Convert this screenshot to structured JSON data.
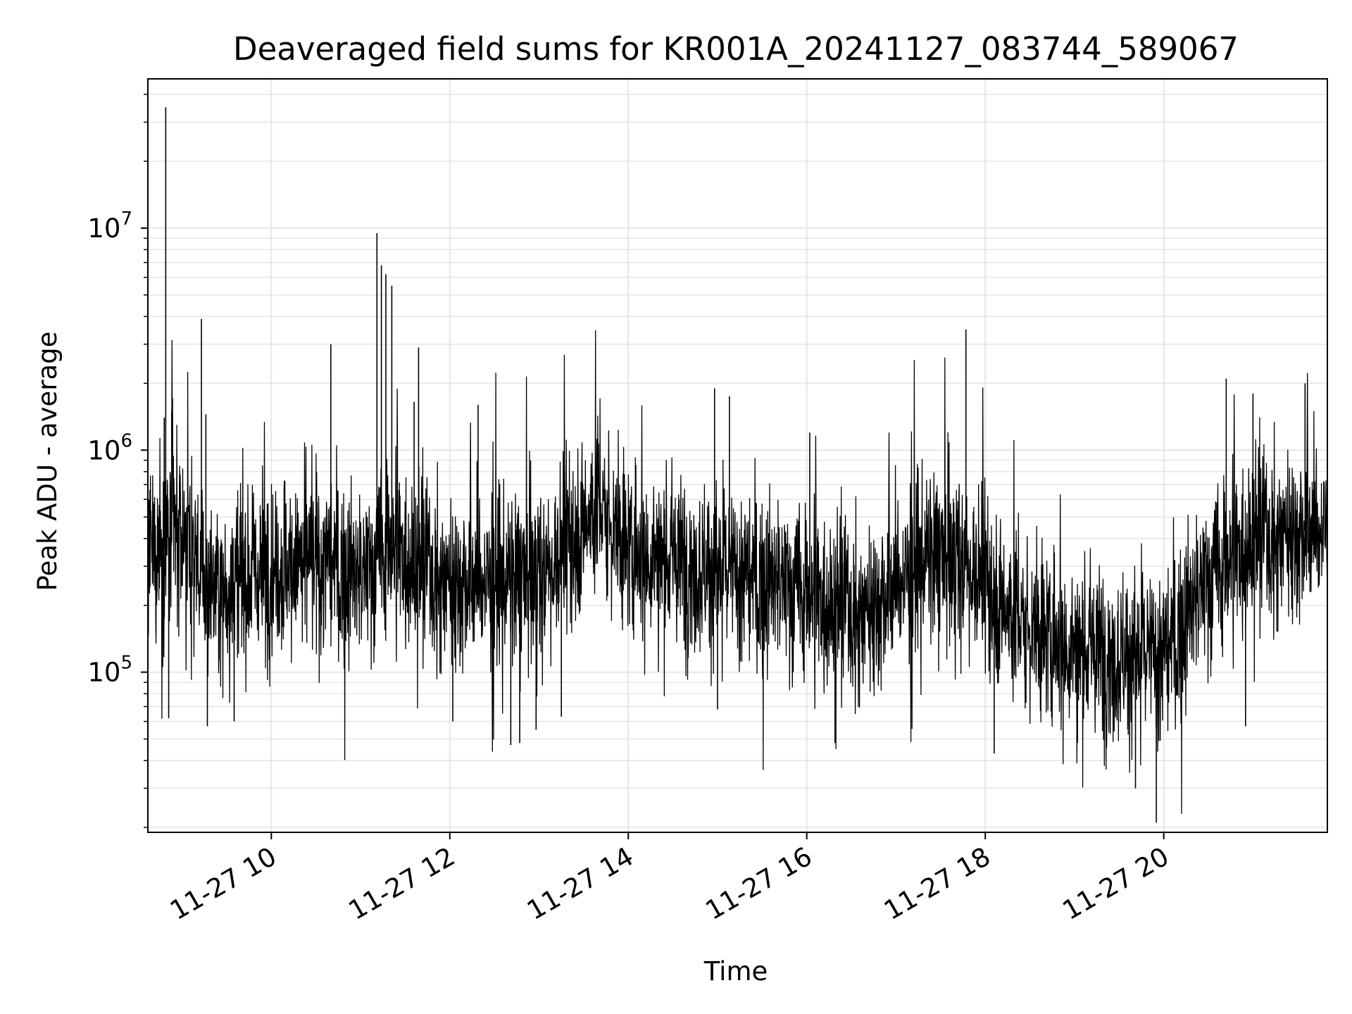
{
  "chart_data": {
    "type": "line",
    "title": "Deaveraged field sums for KR001A_20241127_083744_589067",
    "xlabel": "Time",
    "ylabel": "Peak ADU - average",
    "yscale": "log",
    "grid": true,
    "grid_minor_y": true,
    "line_color": "#000000",
    "grid_color": "#e6e6e6",
    "xlim": [
      "2024-11-27 08:37",
      "2024-11-27 21:50"
    ],
    "ylim": [
      19000,
      47000000
    ],
    "x_ticks": [
      {
        "value": "2024-11-27 10:00",
        "label": "11-27 10"
      },
      {
        "value": "2024-11-27 12:00",
        "label": "11-27 12"
      },
      {
        "value": "2024-11-27 14:00",
        "label": "11-27 14"
      },
      {
        "value": "2024-11-27 16:00",
        "label": "11-27 16"
      },
      {
        "value": "2024-11-27 18:00",
        "label": "11-27 18"
      },
      {
        "value": "2024-11-27 20:00",
        "label": "11-27 20"
      }
    ],
    "y_ticks": [
      {
        "value": 100000,
        "base": "10",
        "exp": "5"
      },
      {
        "value": 1000000,
        "base": "10",
        "exp": "6"
      },
      {
        "value": 10000000,
        "base": "10",
        "exp": "7"
      }
    ],
    "series": [
      {
        "baseline": [
          [
            "2024-11-27 08:37",
            320000
          ],
          [
            "2024-11-27 09:00",
            420000
          ],
          [
            "2024-11-27 09:20",
            230000
          ],
          [
            "2024-11-27 10:00",
            300000
          ],
          [
            "2024-11-27 10:40",
            310000
          ],
          [
            "2024-11-27 11:00",
            260000
          ],
          [
            "2024-11-27 11:20",
            380000
          ],
          [
            "2024-11-27 12:00",
            260000
          ],
          [
            "2024-11-27 13:00",
            260000
          ],
          [
            "2024-11-27 13:40",
            560000
          ],
          [
            "2024-11-27 14:00",
            360000
          ],
          [
            "2024-11-27 15:00",
            290000
          ],
          [
            "2024-11-27 16:00",
            230000
          ],
          [
            "2024-11-27 16:40",
            190000
          ],
          [
            "2024-11-27 17:20",
            330000
          ],
          [
            "2024-11-27 17:50",
            300000
          ],
          [
            "2024-11-27 18:20",
            170000
          ],
          [
            "2024-11-27 19:00",
            130000
          ],
          [
            "2024-11-27 19:30",
            120000
          ],
          [
            "2024-11-27 20:00",
            120000
          ],
          [
            "2024-11-27 20:30",
            260000
          ],
          [
            "2024-11-27 21:00",
            420000
          ],
          [
            "2024-11-27 21:50",
            440000
          ]
        ],
        "spikes": [
          [
            "2024-11-27 08:49",
            35000000
          ],
          [
            "2024-11-27 08:53",
            1500000
          ],
          [
            "2024-11-27 08:48",
            1400000
          ],
          [
            "2024-11-27 08:51",
            62000
          ],
          [
            "2024-11-27 09:13",
            3900000
          ],
          [
            "2024-11-27 09:16",
            1450000
          ],
          [
            "2024-11-27 09:17",
            57000
          ],
          [
            "2024-11-27 09:35",
            60000
          ],
          [
            "2024-11-27 10:40",
            3000000
          ],
          [
            "2024-11-27 11:11",
            9500000
          ],
          [
            "2024-11-27 11:14",
            6800000
          ],
          [
            "2024-11-27 11:17",
            6200000
          ],
          [
            "2024-11-27 11:21",
            5500000
          ],
          [
            "2024-11-27 11:36",
            1650000
          ],
          [
            "2024-11-27 11:39",
            2900000
          ],
          [
            "2024-11-27 12:02",
            60000
          ],
          [
            "2024-11-27 12:19",
            1600000
          ],
          [
            "2024-11-27 12:41",
            47000
          ],
          [
            "2024-11-27 12:47",
            48000
          ],
          [
            "2024-11-27 12:58",
            55000
          ],
          [
            "2024-11-27 13:15",
            63000
          ],
          [
            "2024-11-27 14:58",
            1900000
          ],
          [
            "2024-11-27 15:08",
            1750000
          ],
          [
            "2024-11-27 15:00",
            68000
          ],
          [
            "2024-11-27 16:02",
            1200000
          ],
          [
            "2024-11-27 16:19",
            48000
          ],
          [
            "2024-11-27 17:47",
            3500000
          ],
          [
            "2024-11-27 18:06",
            43000
          ],
          [
            "2024-11-27 19:02",
            48000
          ],
          [
            "2024-11-27 19:41",
            30000
          ],
          [
            "2024-11-27 19:55",
            21000
          ],
          [
            "2024-11-27 20:42",
            2100000
          ],
          [
            "2024-11-27 21:00",
            1800000
          ],
          [
            "2024-11-27 21:35",
            2000000
          ],
          [
            "2024-11-27 20:55",
            57000
          ]
        ]
      }
    ]
  }
}
